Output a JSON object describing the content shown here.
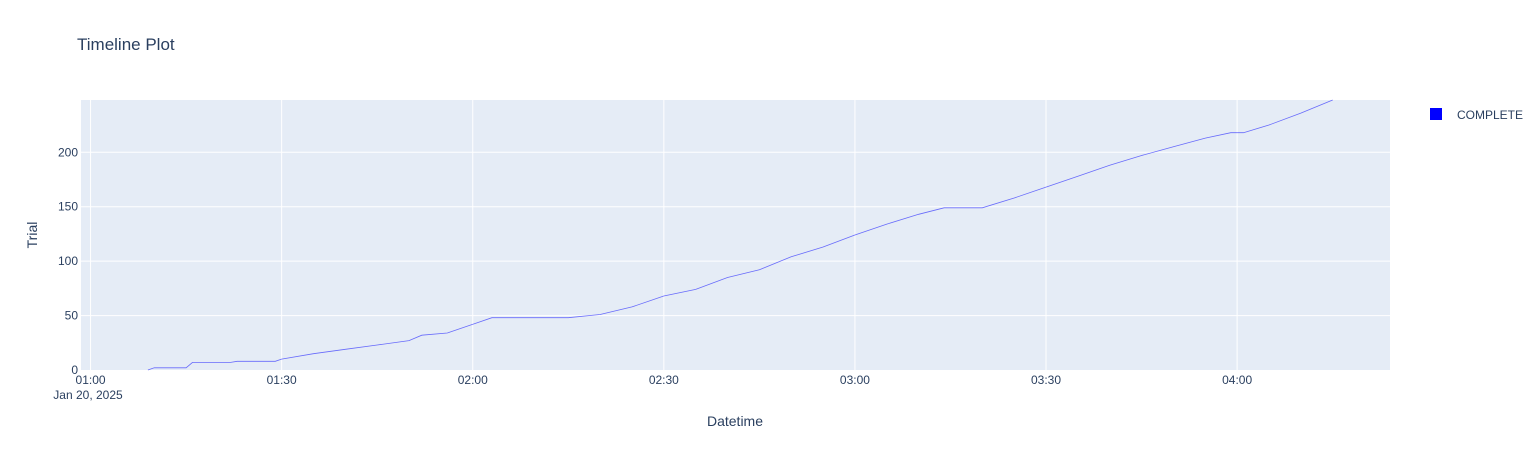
{
  "chart_data": {
    "type": "line",
    "title": "Timeline Plot",
    "xlabel": "Datetime",
    "ylabel": "Trial",
    "x_date_label": "Jan 20, 2025",
    "xlim_minutes": [
      -1.5,
      204
    ],
    "ylim": [
      0,
      248
    ],
    "x_ticks": [
      {
        "minutes": 0,
        "label": "01:00"
      },
      {
        "minutes": 30,
        "label": "01:30"
      },
      {
        "minutes": 60,
        "label": "02:00"
      },
      {
        "minutes": 90,
        "label": "02:30"
      },
      {
        "minutes": 120,
        "label": "03:00"
      },
      {
        "minutes": 150,
        "label": "03:30"
      },
      {
        "minutes": 180,
        "label": "04:00"
      }
    ],
    "y_ticks": [
      {
        "value": 0,
        "label": "0"
      },
      {
        "value": 50,
        "label": "50"
      },
      {
        "value": 100,
        "label": "100"
      },
      {
        "value": 150,
        "label": "150"
      },
      {
        "value": 200,
        "label": "200"
      }
    ],
    "series": [
      {
        "name": "COMPLETE",
        "color": "#0000ff",
        "points": [
          [
            9,
            0
          ],
          [
            10,
            2
          ],
          [
            15,
            2
          ],
          [
            16,
            7
          ],
          [
            22,
            7
          ],
          [
            23,
            8
          ],
          [
            29,
            8
          ],
          [
            30,
            10
          ],
          [
            35,
            15
          ],
          [
            40,
            19
          ],
          [
            45,
            23
          ],
          [
            50,
            27
          ],
          [
            52,
            32
          ],
          [
            56,
            34
          ],
          [
            61,
            44
          ],
          [
            63,
            48
          ],
          [
            75,
            48
          ],
          [
            80,
            51
          ],
          [
            85,
            58
          ],
          [
            90,
            68
          ],
          [
            95,
            74
          ],
          [
            100,
            85
          ],
          [
            105,
            92
          ],
          [
            110,
            104
          ],
          [
            115,
            113
          ],
          [
            120,
            124
          ],
          [
            125,
            134
          ],
          [
            130,
            143
          ],
          [
            134,
            149
          ],
          [
            140,
            149
          ],
          [
            145,
            158
          ],
          [
            150,
            168
          ],
          [
            155,
            178
          ],
          [
            160,
            188
          ],
          [
            165,
            197
          ],
          [
            170,
            205
          ],
          [
            175,
            213
          ],
          [
            179,
            218
          ],
          [
            181,
            218
          ],
          [
            185,
            225
          ],
          [
            190,
            236
          ],
          [
            195,
            248
          ]
        ]
      }
    ],
    "legend": {
      "entries": [
        "COMPLETE"
      ],
      "position": "right"
    }
  }
}
